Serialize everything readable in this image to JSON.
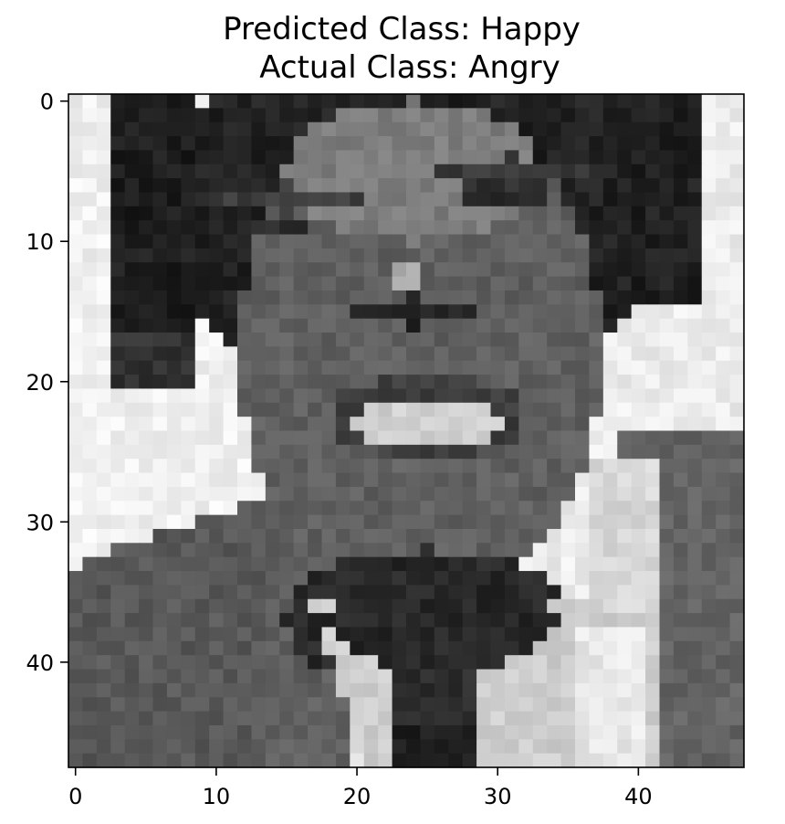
{
  "chart_data": {
    "type": "heatmap",
    "title_lines": [
      "Predicted Class: Happy",
      "Actual Class: Angry"
    ],
    "colormap": "gray",
    "image_size": [
      48,
      48
    ],
    "xlim": [
      -0.5,
      47.5
    ],
    "ylim": [
      47.5,
      -0.5
    ],
    "x_ticks": [
      0,
      10,
      20,
      30,
      40
    ],
    "y_ticks": [
      0,
      10,
      20,
      30,
      40
    ],
    "x_tick_labels": [
      "0",
      "10",
      "20",
      "30",
      "40"
    ],
    "y_tick_labels": [
      "0",
      "10",
      "20",
      "30",
      "40"
    ],
    "description_regions": [
      {
        "region": "background-left",
        "value": 240
      },
      {
        "region": "background-right",
        "value": 235
      },
      {
        "region": "hair",
        "value": 35
      },
      {
        "region": "face",
        "value": 95
      },
      {
        "region": "mouth-teeth",
        "value": 210
      },
      {
        "region": "jacket",
        "value": 90
      },
      {
        "region": "shirt",
        "value": 205
      },
      {
        "region": "tie",
        "value": 40
      }
    ]
  }
}
